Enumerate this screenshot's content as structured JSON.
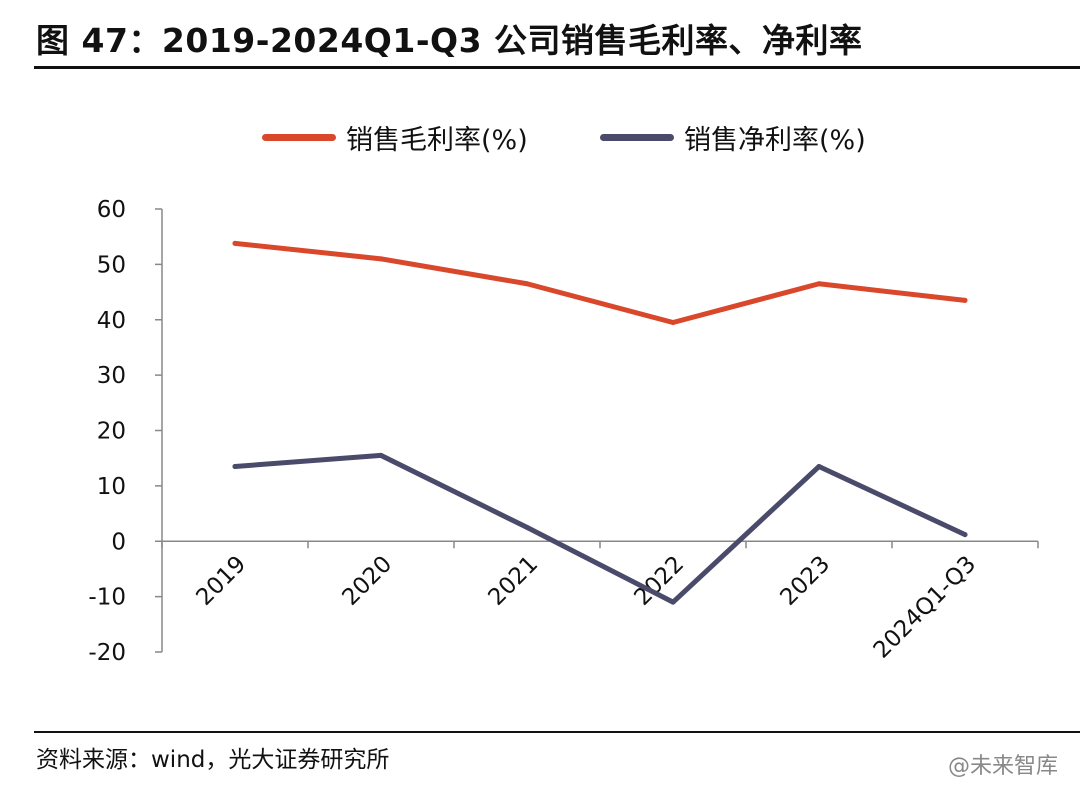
{
  "title": "图 47：2019-2024Q1-Q3 公司销售毛利率、净利率",
  "source": "资料来源：wind，光大证券研究所",
  "watermark": "@未来智库",
  "chart_data": {
    "type": "line",
    "categories": [
      "2019",
      "2020",
      "2021",
      "2022",
      "2023",
      "2024Q1-Q3"
    ],
    "series": [
      {
        "name": "销售毛利率(%)",
        "color": "#d9482b",
        "values": [
          53.8,
          51.0,
          46.5,
          39.5,
          46.5,
          43.5
        ]
      },
      {
        "name": "销售净利率(%)",
        "color": "#4a4a6a",
        "values": [
          13.5,
          15.5,
          2.5,
          -11.0,
          13.5,
          1.2
        ]
      }
    ],
    "yticks": [
      60,
      50,
      40,
      30,
      20,
      10,
      0,
      -10,
      -20
    ],
    "ylim": [
      -20,
      60
    ],
    "legend": "top-center"
  }
}
